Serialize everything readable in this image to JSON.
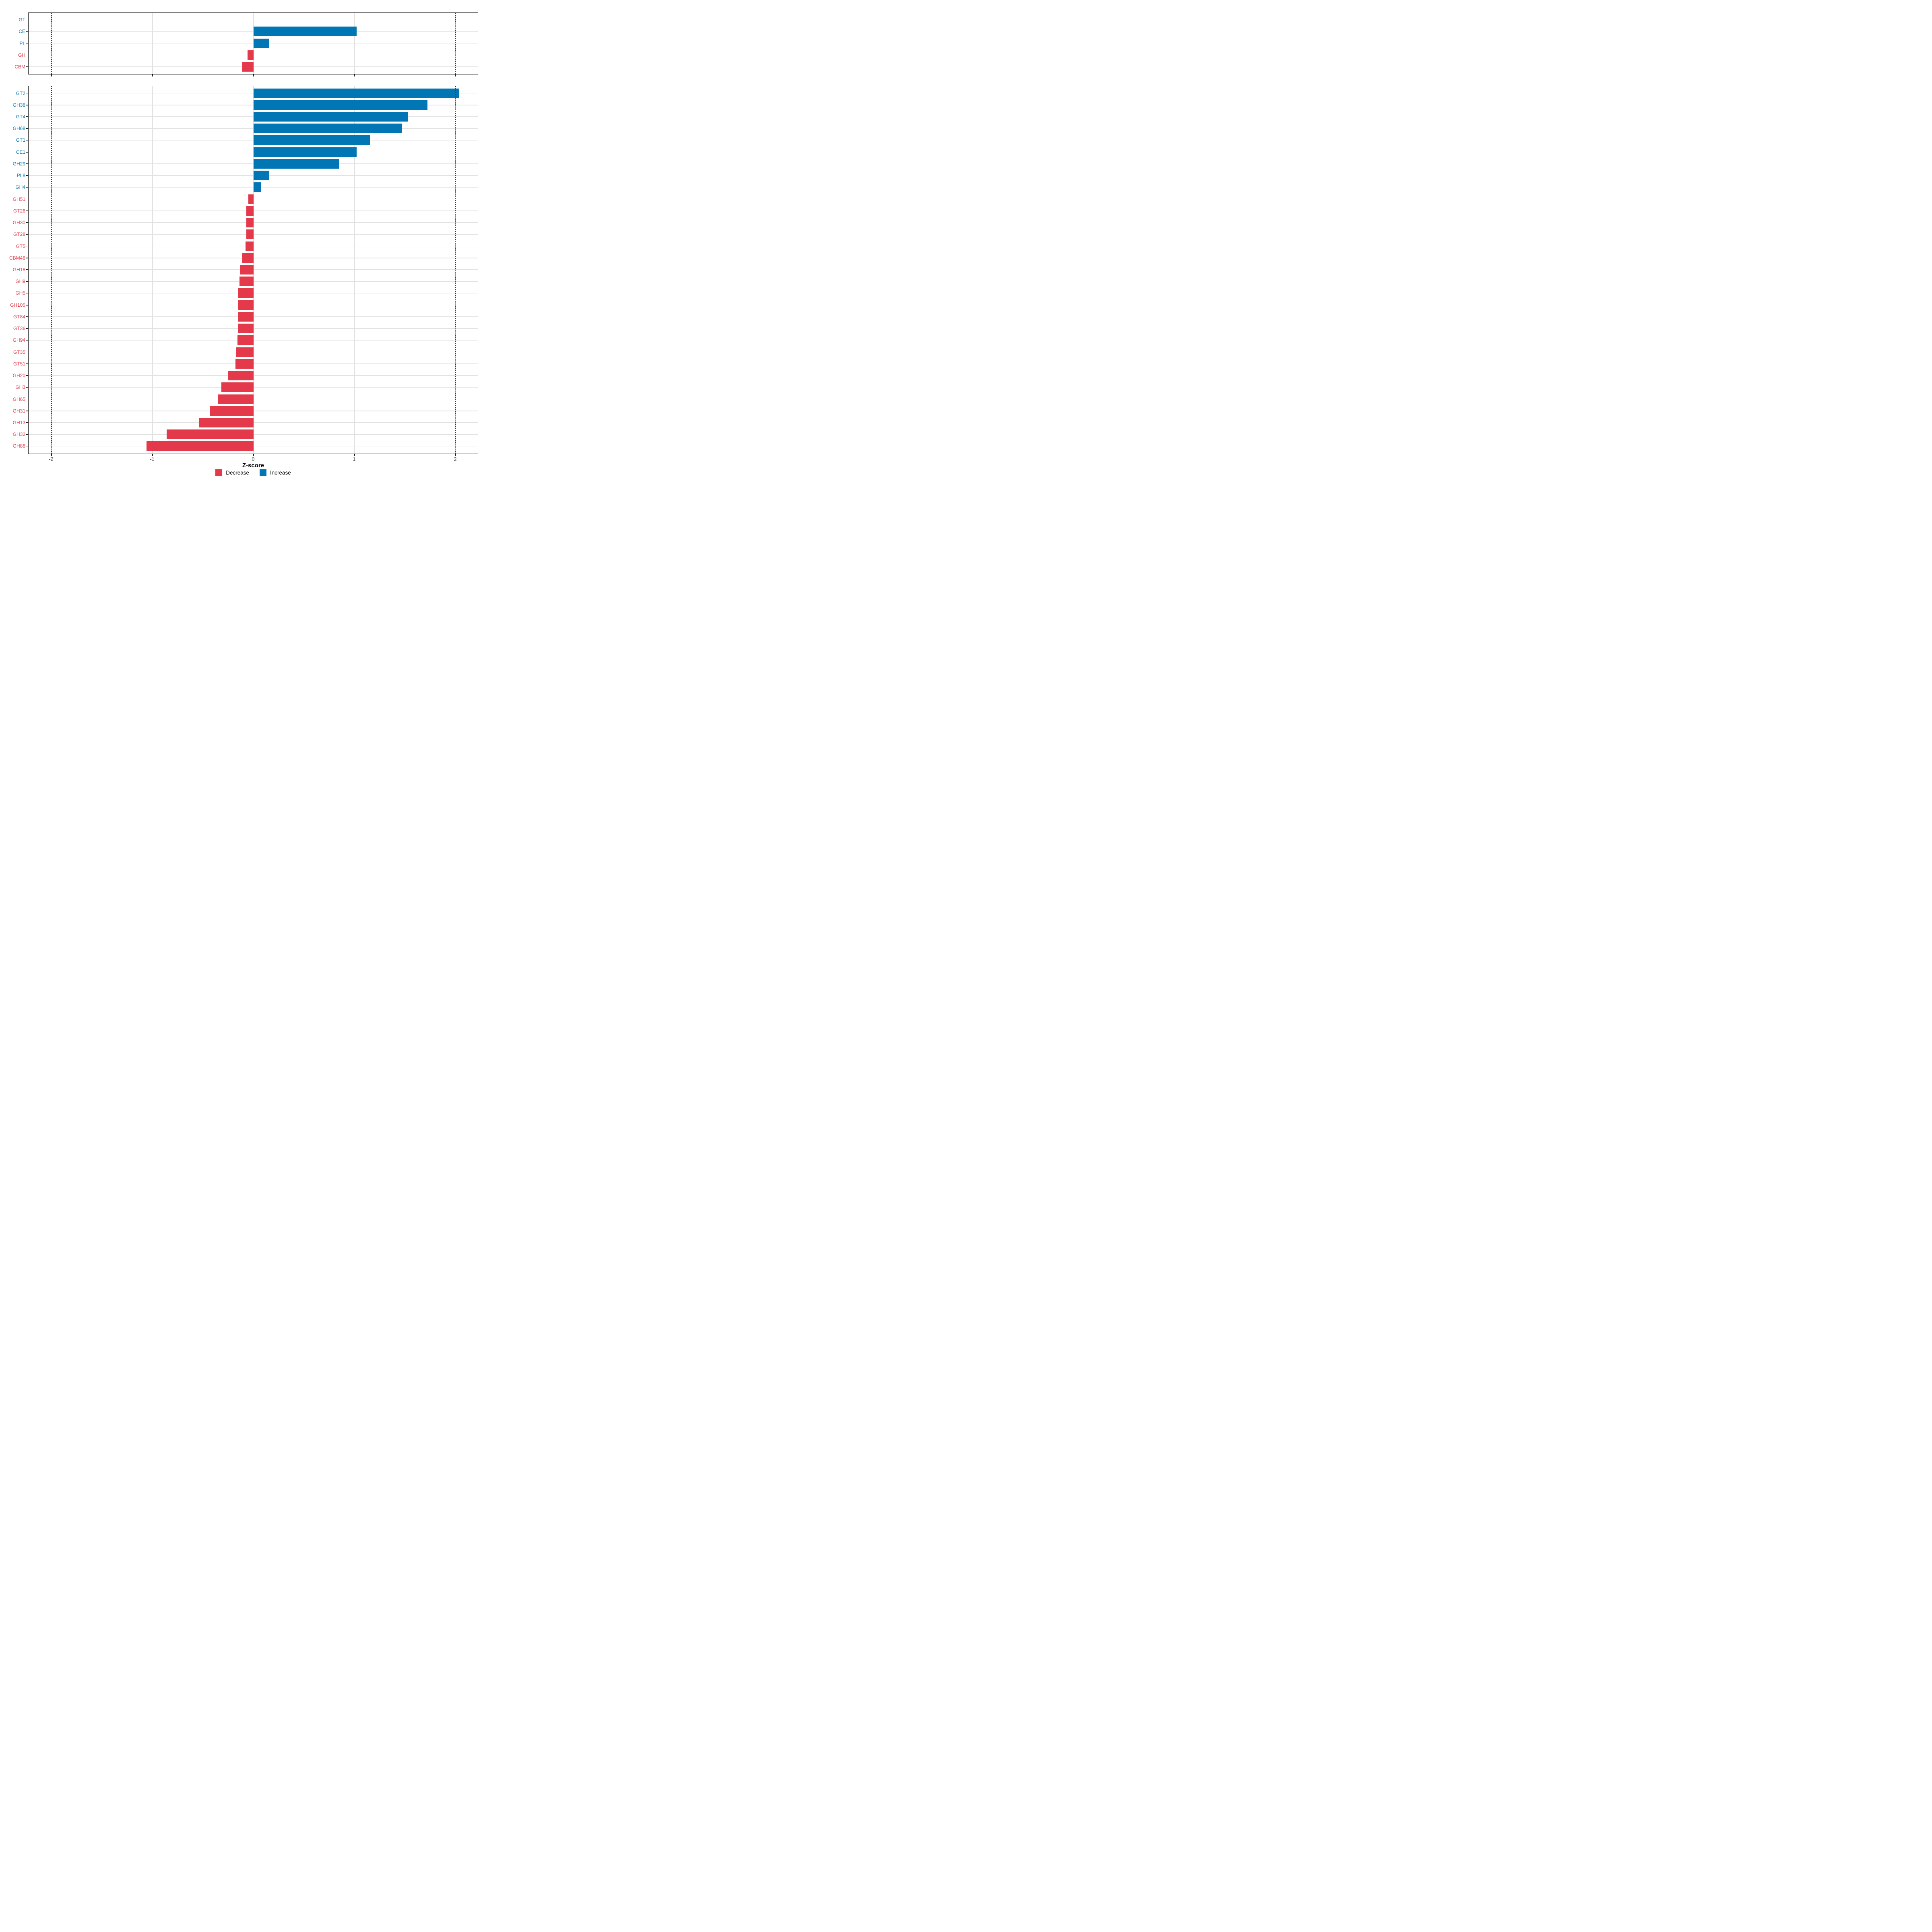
{
  "chart_data": {
    "type": "bar",
    "orientation": "horizontal",
    "title": "",
    "xlabel": "Z-score",
    "ylabel": "",
    "xlim": [
      -2.23,
      2.23
    ],
    "x_ticks": [
      -2,
      -1,
      0,
      1,
      2
    ],
    "x_tick_labels": [
      "-2",
      "-1",
      "0",
      "1",
      "2"
    ],
    "grid": {
      "horizontal_row_lines": true,
      "vertical_major_lines": [
        -1,
        0,
        1
      ],
      "dotted_reference_lines": [
        -2,
        2
      ]
    },
    "legend_position": "bottom",
    "colors": {
      "increase": "#0076B4",
      "decrease": "#E3394A"
    },
    "legend": [
      {
        "label": "Decrease",
        "direction": "decrease",
        "color": "#E3394A"
      },
      {
        "label": "Increase",
        "direction": "increase",
        "color": "#0076B4"
      }
    ],
    "panels": [
      {
        "name": "cazyme-class-panel",
        "categories": [
          "GT",
          "CE",
          "PL",
          "GH",
          "CBM"
        ],
        "values": [
          0,
          1.02,
          0.15,
          -0.06,
          -0.11
        ],
        "directions": [
          "increase",
          "increase",
          "increase",
          "decrease",
          "decrease"
        ]
      },
      {
        "name": "cazyme-family-panel",
        "categories": [
          "GT2",
          "GH38",
          "GT4",
          "GH68",
          "GT1",
          "CE1",
          "GH29",
          "PL8",
          "GH4",
          "GH51",
          "GT26",
          "GH30",
          "GT28",
          "GT5",
          "CBM48",
          "GH18",
          "GH9",
          "GH5",
          "GH105",
          "GT84",
          "GT36",
          "GH94",
          "GT35",
          "GT51",
          "GH20",
          "GH3",
          "GH65",
          "GH31",
          "GH13",
          "GH32",
          "GH88"
        ],
        "values": [
          2.03,
          1.72,
          1.53,
          1.47,
          1.15,
          1.02,
          0.85,
          0.15,
          0.07,
          -0.05,
          -0.07,
          -0.07,
          -0.07,
          -0.08,
          -0.11,
          -0.13,
          -0.14,
          -0.15,
          -0.15,
          -0.15,
          -0.15,
          -0.16,
          -0.17,
          -0.18,
          -0.25,
          -0.32,
          -0.35,
          -0.43,
          -0.54,
          -0.86,
          -1.06
        ],
        "directions": [
          "increase",
          "increase",
          "increase",
          "increase",
          "increase",
          "increase",
          "increase",
          "increase",
          "increase",
          "decrease",
          "decrease",
          "decrease",
          "decrease",
          "decrease",
          "decrease",
          "decrease",
          "decrease",
          "decrease",
          "decrease",
          "decrease",
          "decrease",
          "decrease",
          "decrease",
          "decrease",
          "decrease",
          "decrease",
          "decrease",
          "decrease",
          "decrease",
          "decrease",
          "decrease"
        ]
      }
    ]
  }
}
